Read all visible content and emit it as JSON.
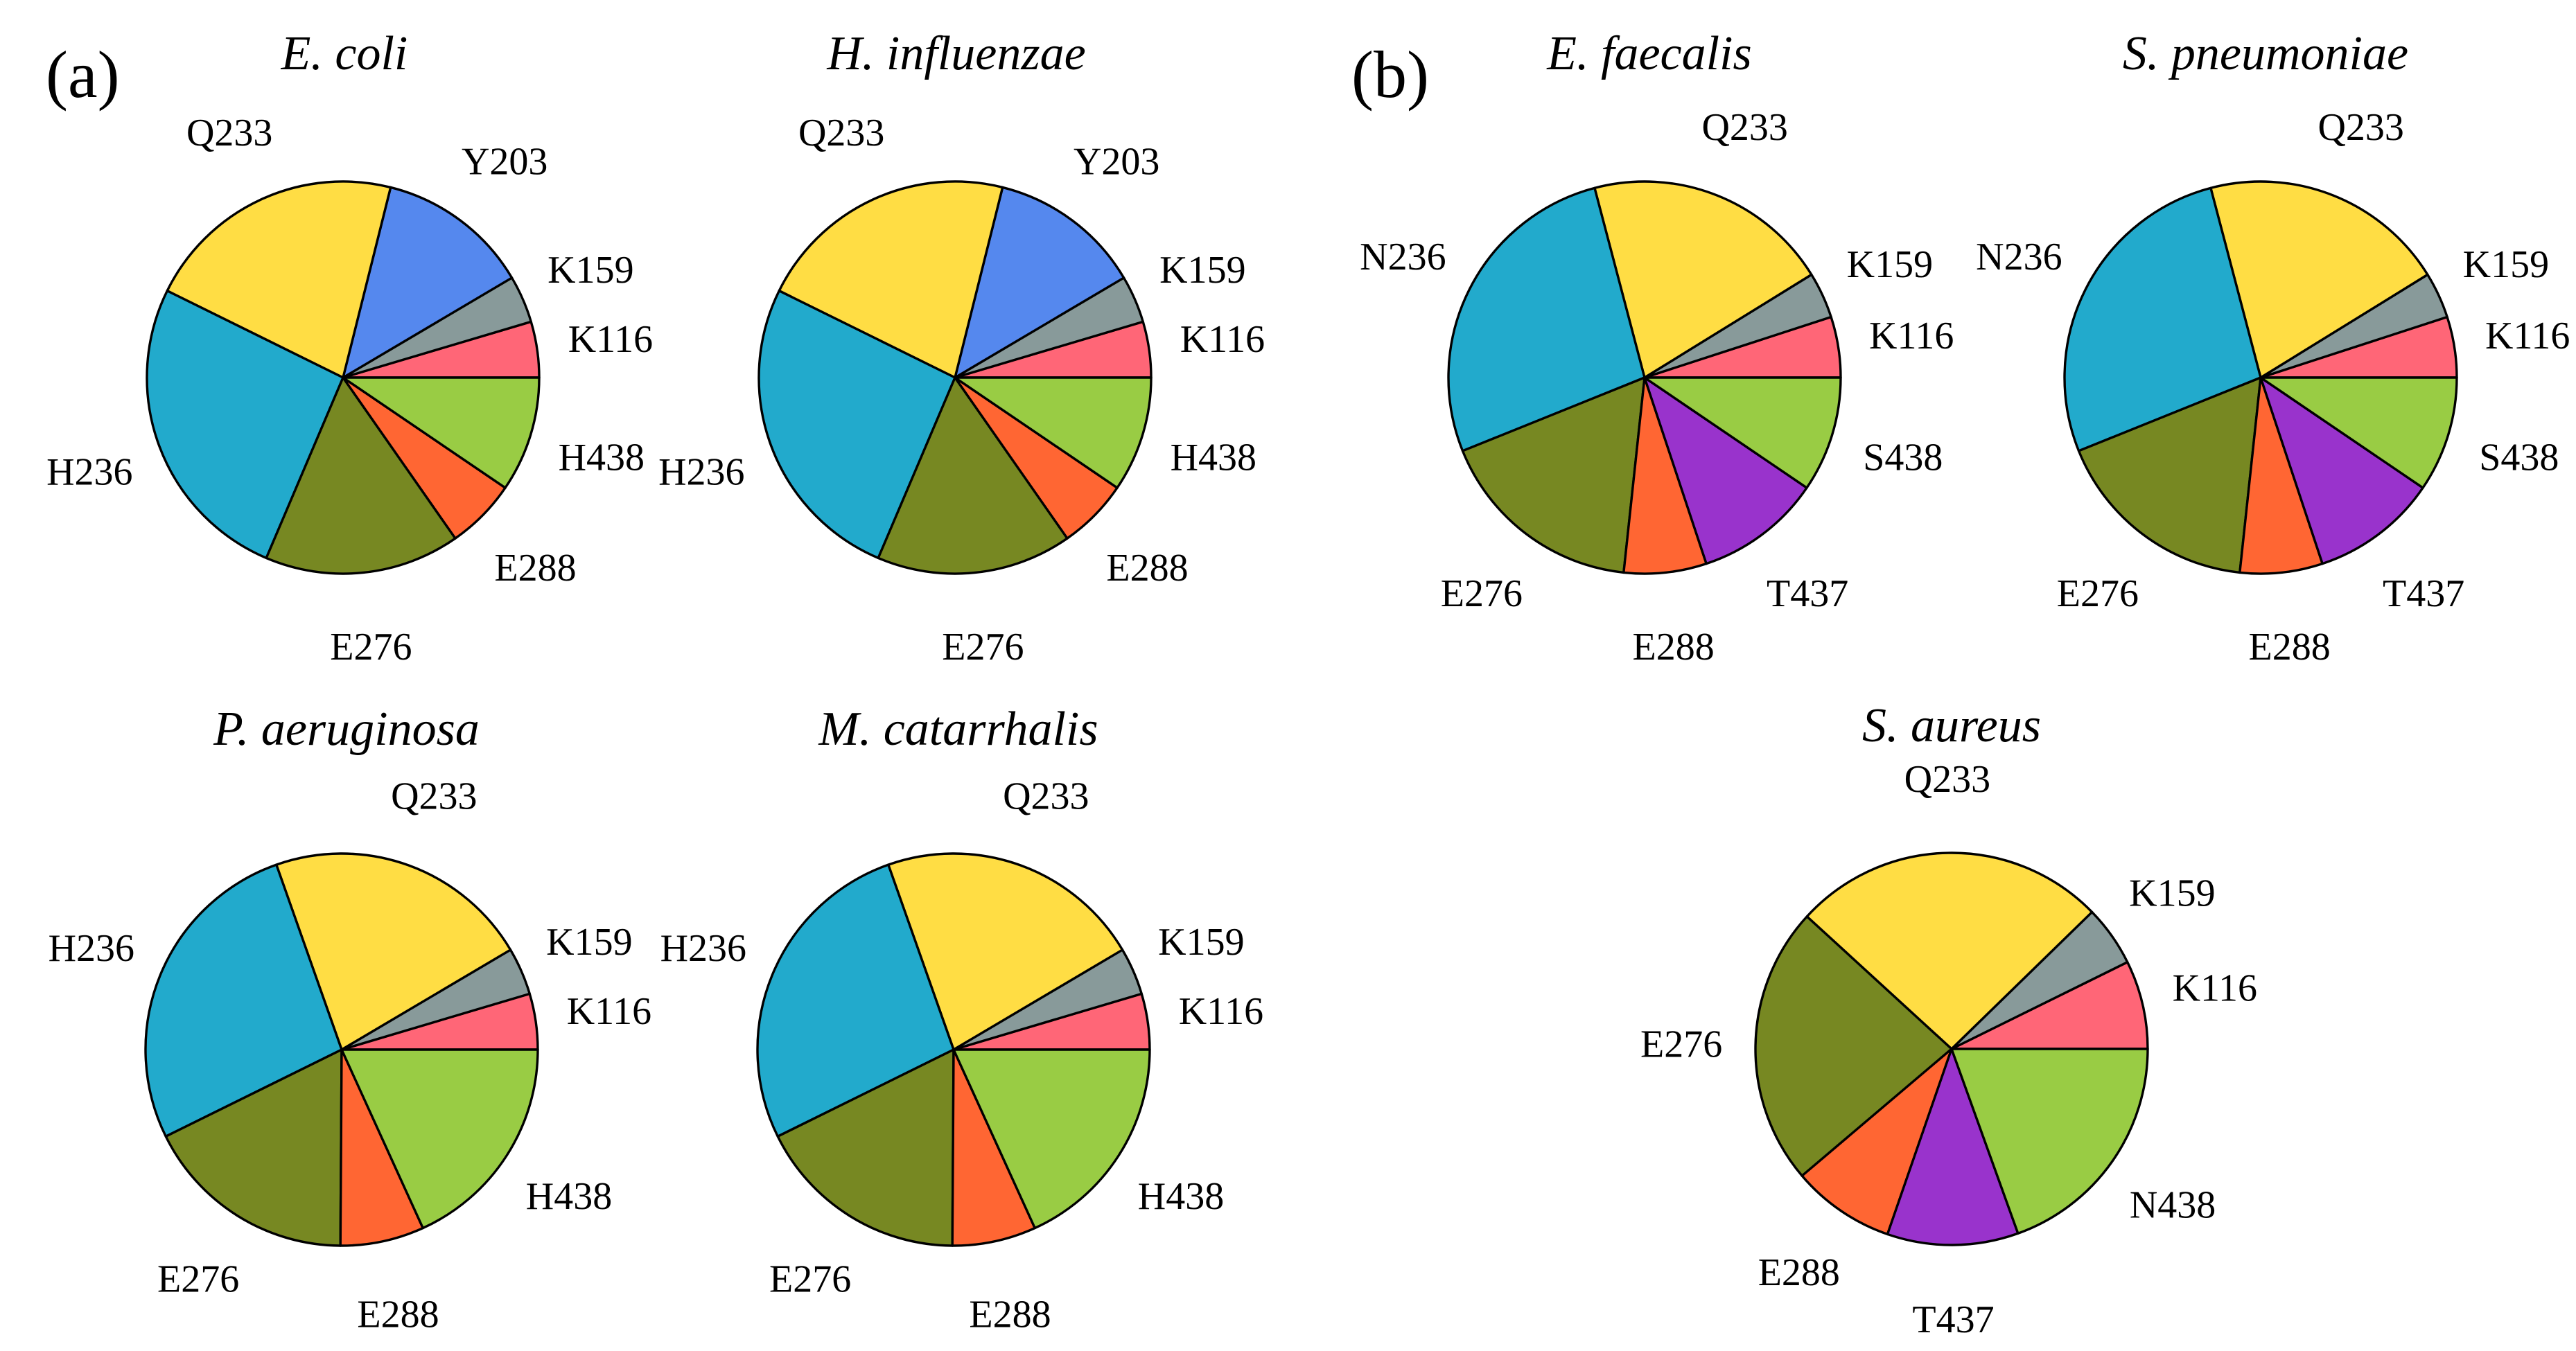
{
  "panels": {
    "a": "(a)",
    "b": "(b)"
  },
  "colors": {
    "Y203": "#5588ee",
    "K159": "#889a9a",
    "K116": "#ff6677",
    "H438": "#99cc44",
    "E288": "#ff6633",
    "E276": "#778822",
    "H236": "#22aacc",
    "N236": "#22aacc",
    "Q233": "#ffdd44",
    "S438": "#99cc44",
    "N438": "#99cc44",
    "T437": "#9933cc"
  },
  "chart_data": [
    {
      "type": "pie",
      "panel": "a",
      "title": "E. coli",
      "start_angle": 0,
      "direction": "counterclockwise",
      "categories": [
        "K116",
        "K159",
        "Y203",
        "Q233",
        "H236",
        "E276",
        "E288",
        "H438"
      ],
      "values": [
        4.6,
        3.9,
        12.6,
        21.6,
        25.9,
        16.1,
        5.8,
        9.5
      ]
    },
    {
      "type": "pie",
      "panel": "a",
      "title": "H. influenzae",
      "start_angle": 0,
      "direction": "counterclockwise",
      "categories": [
        "K116",
        "K159",
        "Y203",
        "Q233",
        "H236",
        "E276",
        "E288",
        "H438"
      ],
      "values": [
        4.6,
        3.9,
        12.6,
        21.6,
        25.9,
        16.1,
        5.8,
        9.5
      ]
    },
    {
      "type": "pie",
      "panel": "a",
      "title": "P. aeruginosa",
      "start_angle": 0,
      "direction": "counterclockwise",
      "categories": [
        "K116",
        "K159",
        "Q233",
        "H236",
        "E276",
        "E288",
        "H438"
      ],
      "values": [
        4.6,
        3.9,
        21.9,
        26.9,
        17.6,
        6.9,
        18.2
      ]
    },
    {
      "type": "pie",
      "panel": "a",
      "title": "M. catarrhalis",
      "start_angle": 0,
      "direction": "counterclockwise",
      "categories": [
        "K116",
        "K159",
        "Q233",
        "H236",
        "E276",
        "E288",
        "H438"
      ],
      "values": [
        4.6,
        3.9,
        21.9,
        26.9,
        17.6,
        6.9,
        18.2
      ]
    },
    {
      "type": "pie",
      "panel": "b",
      "title": "E. faecalis",
      "start_angle": 0,
      "direction": "counterclockwise",
      "categories": [
        "K116",
        "K159",
        "Q233",
        "N236",
        "E276",
        "E288",
        "T437",
        "S438"
      ],
      "values": [
        5.0,
        3.8,
        20.3,
        27.0,
        17.2,
        6.8,
        10.4,
        9.5
      ]
    },
    {
      "type": "pie",
      "panel": "b",
      "title": "S. pneumoniae",
      "start_angle": 0,
      "direction": "counterclockwise",
      "categories": [
        "K116",
        "K159",
        "Q233",
        "N236",
        "E276",
        "E288",
        "T437",
        "S438"
      ],
      "values": [
        5.0,
        3.8,
        20.3,
        27.0,
        17.2,
        6.8,
        10.4,
        9.5
      ]
    },
    {
      "type": "pie",
      "panel": "b",
      "title": "S. aureus",
      "start_angle": 0,
      "direction": "counterclockwise",
      "categories": [
        "K116",
        "K159",
        "Q233",
        "E276",
        "E288",
        "T437",
        "N438"
      ],
      "values": [
        7.3,
        5.0,
        25.9,
        23.0,
        8.5,
        10.8,
        19.5
      ]
    }
  ]
}
